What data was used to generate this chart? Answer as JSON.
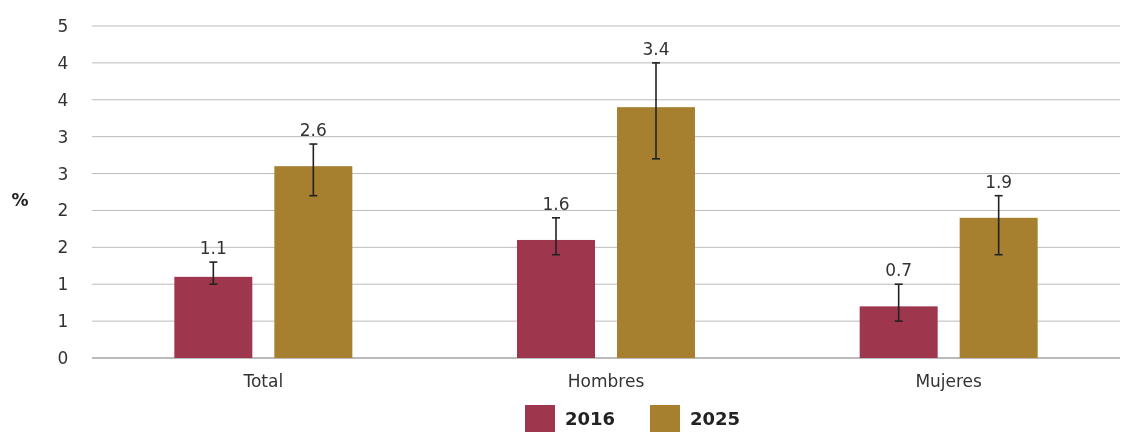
{
  "chart_data": {
    "type": "bar",
    "ylabel": "%",
    "categories": [
      "Total",
      "Hombres",
      "Mujeres"
    ],
    "series": [
      {
        "name": "2016",
        "color": "#9e364d",
        "values": [
          1.1,
          1.6,
          0.7
        ],
        "errors": [
          [
            1.0,
            1.3
          ],
          [
            1.4,
            1.9
          ],
          [
            0.5,
            1.0
          ]
        ]
      },
      {
        "name": "2025",
        "color": "#a67f2f",
        "values": [
          2.6,
          3.4,
          1.9
        ],
        "errors": [
          [
            2.2,
            2.9
          ],
          [
            2.7,
            4.0
          ],
          [
            1.4,
            2.2
          ]
        ]
      }
    ],
    "ylim": [
      0,
      4.5
    ],
    "yticks": [
      0,
      {
        "value": 0.5,
        "label": "1"
      },
      1,
      {
        "value": 1.5,
        "label": "2"
      },
      2,
      {
        "value": 2.5,
        "label": "3"
      },
      3,
      {
        "value": 3.5,
        "label": "4"
      },
      4,
      {
        "value": 4.5,
        "label": "5"
      }
    ],
    "grid": "y",
    "legend": "bottom",
    "data_labels": true
  }
}
